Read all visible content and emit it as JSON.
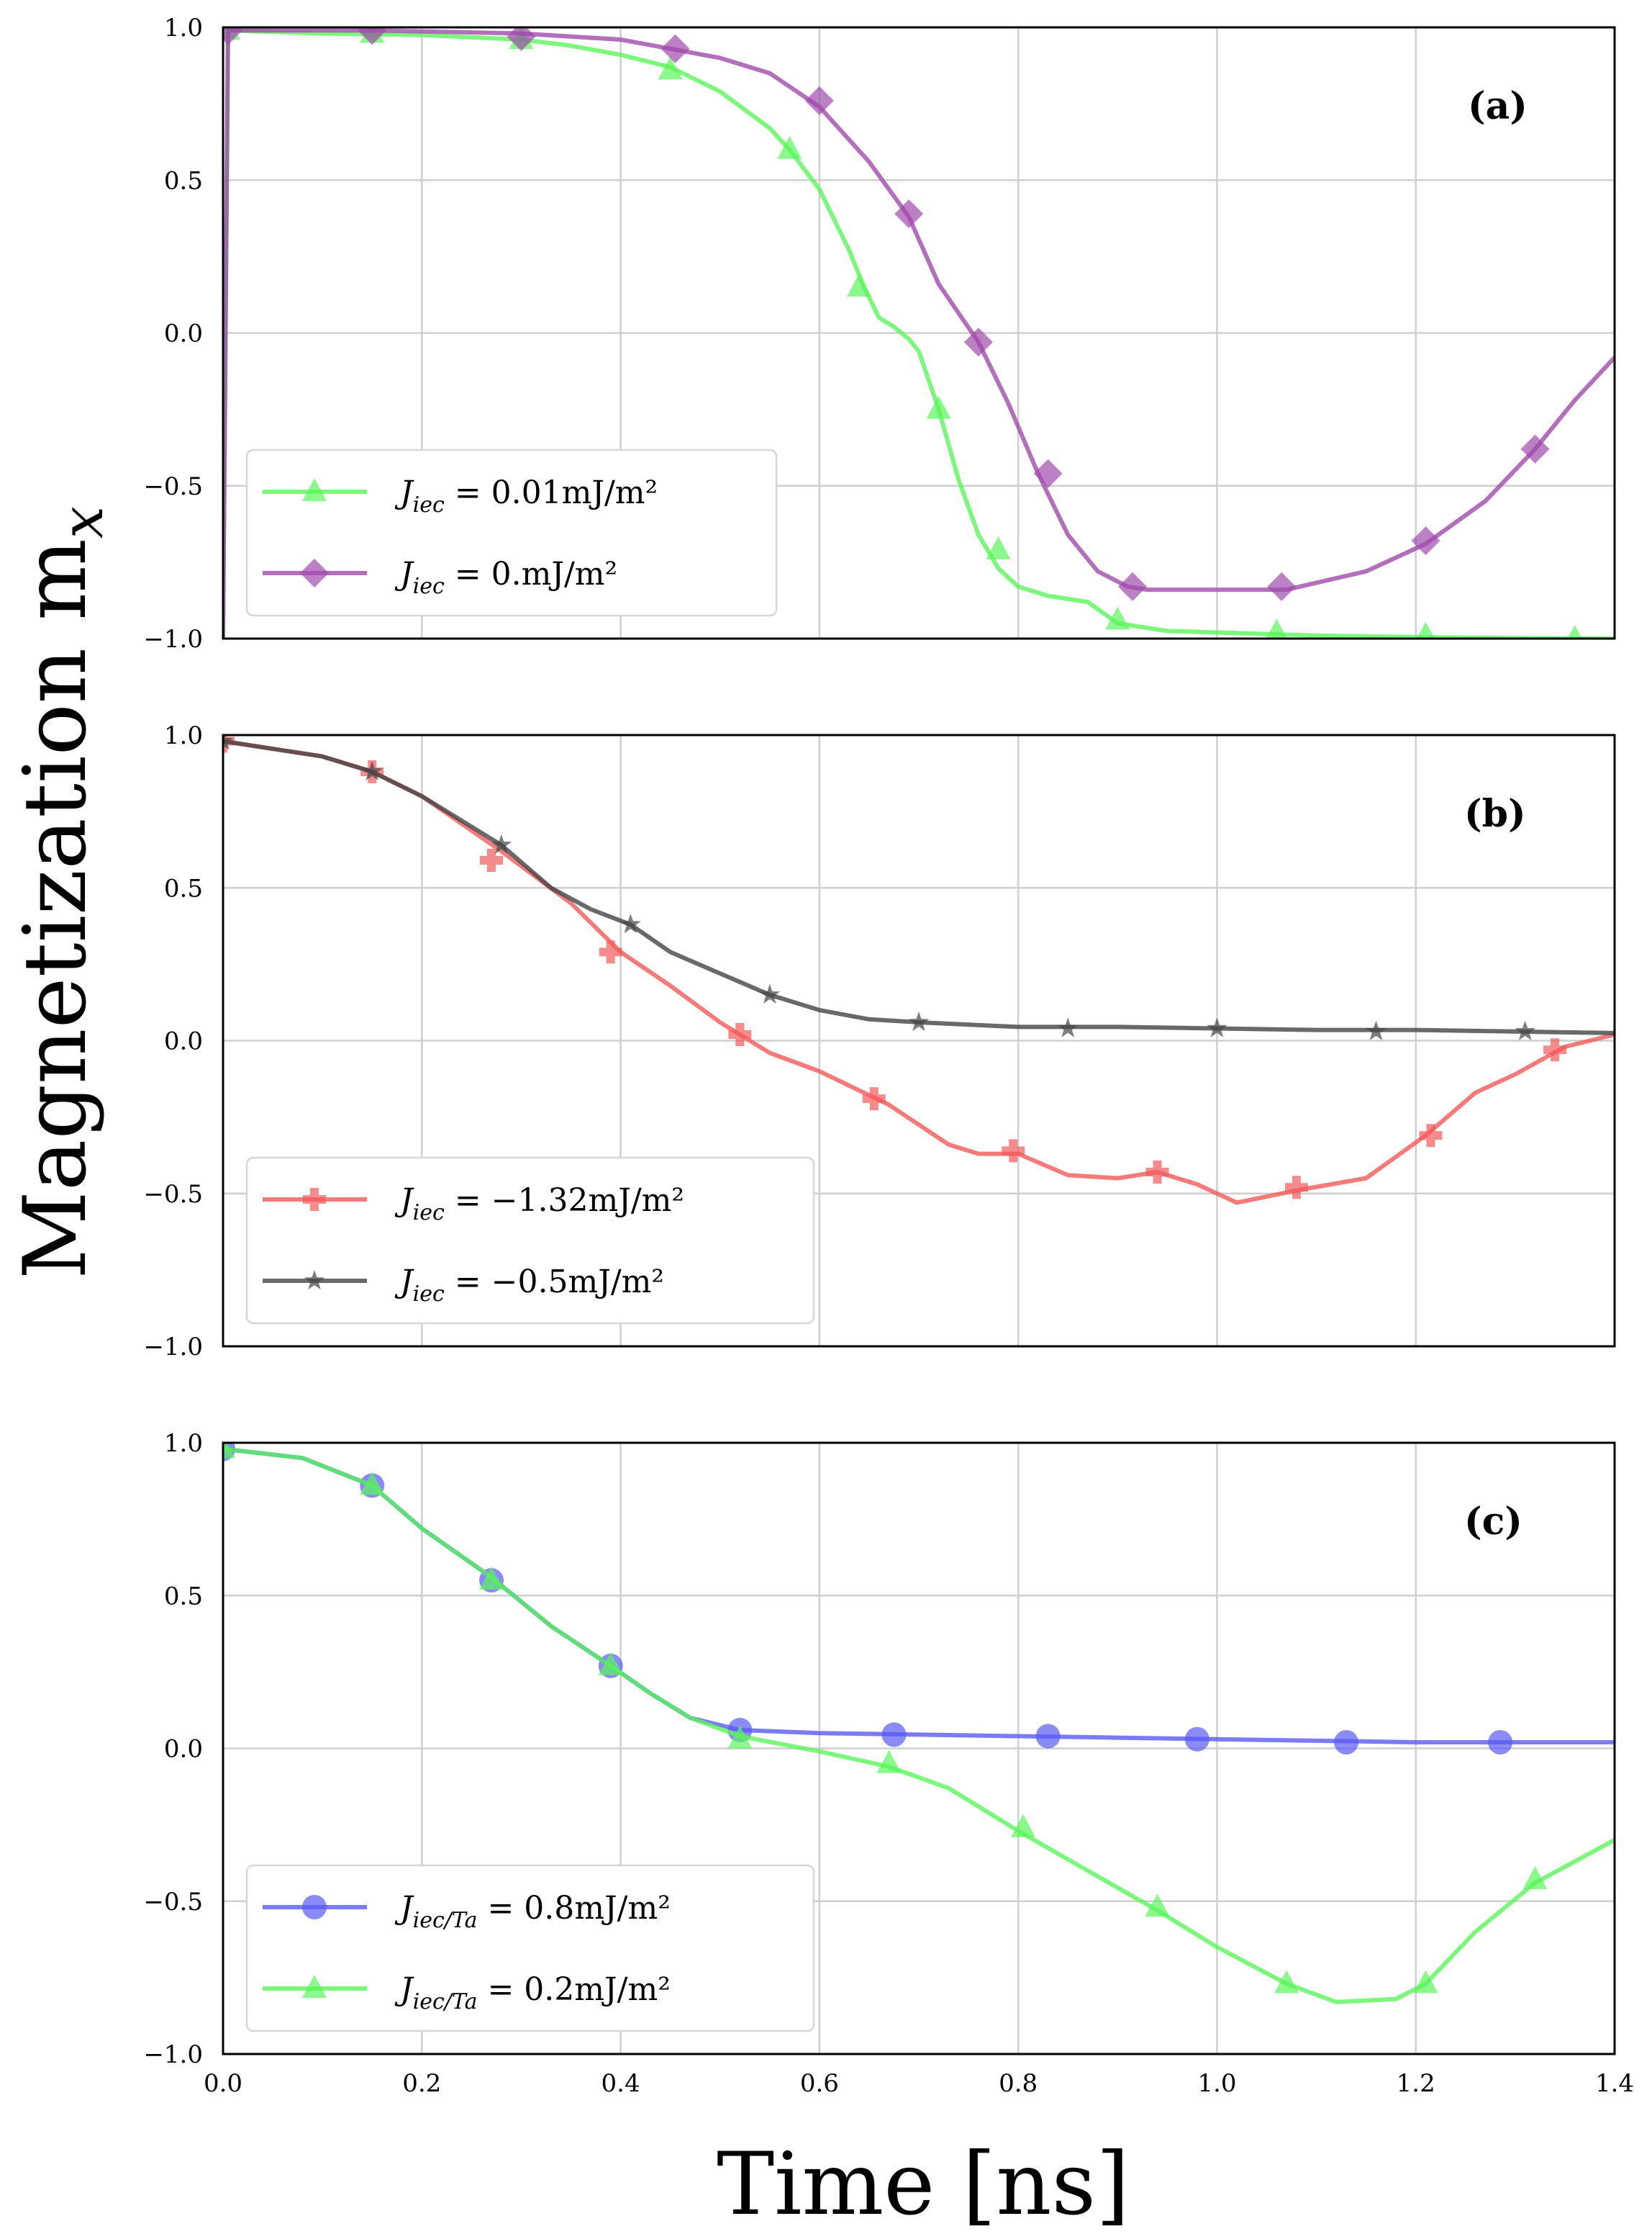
{
  "figure": {
    "ylabel": "Magnetization m",
    "ylabel_subscript": "x",
    "xlabel": "Time [ns]"
  },
  "chart_data": [
    {
      "type": "line",
      "panel": "(a)",
      "xlim": [
        0.0,
        1.4
      ],
      "ylim": [
        -1.0,
        1.0
      ],
      "xticks": [
        "0.0",
        "0.2",
        "0.4",
        "0.6",
        "0.8",
        "1.0",
        "1.2",
        "1.4"
      ],
      "yticks": [
        "−1.0",
        "−0.5",
        "0.0",
        "0.5",
        "1.0"
      ],
      "grid": true,
      "legend_position": "lower-left",
      "series": [
        {
          "name": "J_iec = 0.01mJ/m²",
          "label_main": "J",
          "label_sub": "iec",
          "label_rest": " = 0.01mJ/m²",
          "color": "#5af55a",
          "marker": "triangle",
          "x": [
            0.0,
            0.005,
            0.1,
            0.2,
            0.3,
            0.35,
            0.4,
            0.45,
            0.5,
            0.55,
            0.57,
            0.6,
            0.63,
            0.645,
            0.66,
            0.675,
            0.69,
            0.7,
            0.72,
            0.74,
            0.76,
            0.78,
            0.8,
            0.83,
            0.87,
            0.9,
            0.95,
            1.0,
            1.1,
            1.2,
            1.3,
            1.4
          ],
          "y": [
            -1.0,
            0.99,
            0.98,
            0.975,
            0.96,
            0.94,
            0.91,
            0.87,
            0.79,
            0.67,
            0.6,
            0.47,
            0.27,
            0.15,
            0.05,
            0.02,
            -0.02,
            -0.06,
            -0.25,
            -0.48,
            -0.66,
            -0.77,
            -0.83,
            -0.86,
            -0.88,
            -0.95,
            -0.975,
            -0.98,
            -0.99,
            -0.995,
            -0.998,
            -1.0
          ],
          "marker_x": [
            0.005,
            0.15,
            0.3,
            0.45,
            0.57,
            0.64,
            0.72,
            0.78,
            0.9,
            1.06,
            1.21,
            1.36
          ],
          "marker_y": [
            0.99,
            0.98,
            0.96,
            0.86,
            0.6,
            0.15,
            -0.25,
            -0.71,
            -0.94,
            -0.98,
            -0.99,
            -1.0
          ]
        },
        {
          "name": "J_iec = 0.mJ/m²",
          "label_main": "J",
          "label_sub": "iec",
          "label_rest": " = 0.mJ/m²",
          "color": "#a04aab",
          "marker": "diamond",
          "x": [
            0.0,
            0.005,
            0.15,
            0.3,
            0.4,
            0.45,
            0.5,
            0.55,
            0.6,
            0.65,
            0.69,
            0.72,
            0.76,
            0.79,
            0.82,
            0.85,
            0.88,
            0.91,
            0.93,
            1.0,
            1.07,
            1.15,
            1.21,
            1.27,
            1.32,
            1.36,
            1.4
          ],
          "y": [
            -1.0,
            0.99,
            0.99,
            0.98,
            0.96,
            0.93,
            0.9,
            0.85,
            0.74,
            0.56,
            0.38,
            0.16,
            -0.03,
            -0.23,
            -0.46,
            -0.66,
            -0.78,
            -0.83,
            -0.84,
            -0.84,
            -0.84,
            -0.78,
            -0.69,
            -0.55,
            -0.38,
            -0.22,
            -0.08
          ],
          "marker_x": [
            0.005,
            0.15,
            0.3,
            0.455,
            0.6,
            0.69,
            0.76,
            0.83,
            0.915,
            1.065,
            1.21,
            1.32
          ],
          "marker_y": [
            0.99,
            0.99,
            0.97,
            0.93,
            0.76,
            0.39,
            -0.03,
            -0.46,
            -0.83,
            -0.83,
            -0.68,
            -0.38
          ]
        }
      ]
    },
    {
      "type": "line",
      "panel": "(b)",
      "xlim": [
        0.0,
        1.4
      ],
      "ylim": [
        -1.0,
        1.0
      ],
      "xticks": [
        "0.0",
        "0.2",
        "0.4",
        "0.6",
        "0.8",
        "1.0",
        "1.2",
        "1.4"
      ],
      "yticks": [
        "−1.0",
        "−0.5",
        "0.0",
        "0.5",
        "1.0"
      ],
      "grid": true,
      "legend_position": "lower-left",
      "series": [
        {
          "name": "J_iec = −1.32mJ/m²",
          "label_main": "J",
          "label_sub": "iec",
          "label_rest": " = −1.32mJ/m²",
          "color": "#f25a5a",
          "marker": "plus",
          "x": [
            0.0,
            0.1,
            0.15,
            0.2,
            0.28,
            0.35,
            0.4,
            0.45,
            0.5,
            0.55,
            0.6,
            0.67,
            0.73,
            0.76,
            0.8,
            0.85,
            0.9,
            0.94,
            0.98,
            1.02,
            1.05,
            1.08,
            1.15,
            1.21,
            1.26,
            1.3,
            1.35,
            1.4
          ],
          "y": [
            0.98,
            0.93,
            0.88,
            0.8,
            0.62,
            0.45,
            0.29,
            0.18,
            0.06,
            -0.04,
            -0.1,
            -0.21,
            -0.34,
            -0.37,
            -0.37,
            -0.44,
            -0.45,
            -0.43,
            -0.47,
            -0.53,
            -0.51,
            -0.49,
            -0.45,
            -0.31,
            -0.17,
            -0.11,
            -0.02,
            0.02
          ],
          "marker_x": [
            0.0,
            0.15,
            0.27,
            0.39,
            0.52,
            0.655,
            0.795,
            0.94,
            1.08,
            1.215,
            1.34
          ],
          "marker_y": [
            0.98,
            0.88,
            0.59,
            0.29,
            0.02,
            -0.19,
            -0.36,
            -0.43,
            -0.48,
            -0.31,
            -0.03
          ]
        },
        {
          "name": "J_iec = −0.5mJ/m²",
          "label_main": "J",
          "label_sub": "iec",
          "label_rest": " = −0.5mJ/m²",
          "color": "#444444",
          "marker": "star",
          "x": [
            0.0,
            0.1,
            0.15,
            0.2,
            0.28,
            0.33,
            0.37,
            0.41,
            0.45,
            0.5,
            0.55,
            0.6,
            0.65,
            0.7,
            0.8,
            0.9,
            1.0,
            1.1,
            1.2,
            1.3,
            1.4
          ],
          "y": [
            0.98,
            0.93,
            0.88,
            0.8,
            0.64,
            0.5,
            0.43,
            0.38,
            0.29,
            0.22,
            0.15,
            0.1,
            0.07,
            0.06,
            0.045,
            0.045,
            0.04,
            0.035,
            0.035,
            0.03,
            0.025
          ],
          "marker_x": [
            0.0,
            0.15,
            0.28,
            0.41,
            0.55,
            0.7,
            0.85,
            1.0,
            1.16,
            1.31
          ],
          "marker_y": [
            0.98,
            0.88,
            0.64,
            0.38,
            0.15,
            0.06,
            0.04,
            0.04,
            0.03,
            0.03
          ]
        }
      ]
    },
    {
      "type": "line",
      "panel": "(c)",
      "xlim": [
        0.0,
        1.4
      ],
      "ylim": [
        -1.0,
        1.0
      ],
      "xticks": [
        "0.0",
        "0.2",
        "0.4",
        "0.6",
        "0.8",
        "1.0",
        "1.2",
        "1.4"
      ],
      "yticks": [
        "−1.0",
        "−0.5",
        "0.0",
        "0.5",
        "1.0"
      ],
      "grid": true,
      "legend_position": "lower-left",
      "series": [
        {
          "name": "J_iec/Ta = 0.8mJ/m²",
          "label_main": "J",
          "label_sub": "iec/Ta",
          "label_rest": " = 0.8mJ/m²",
          "color": "#5a5af5",
          "marker": "circle",
          "x": [
            0.0,
            0.08,
            0.15,
            0.2,
            0.27,
            0.33,
            0.39,
            0.43,
            0.47,
            0.52,
            0.6,
            0.7,
            0.8,
            0.9,
            1.0,
            1.1,
            1.2,
            1.3,
            1.4
          ],
          "y": [
            0.98,
            0.95,
            0.86,
            0.72,
            0.56,
            0.4,
            0.27,
            0.18,
            0.1,
            0.06,
            0.05,
            0.045,
            0.04,
            0.035,
            0.03,
            0.025,
            0.02,
            0.02,
            0.02
          ],
          "marker_x": [
            0.0,
            0.15,
            0.27,
            0.39,
            0.52,
            0.675,
            0.83,
            0.98,
            1.13,
            1.285
          ],
          "marker_y": [
            0.98,
            0.86,
            0.55,
            0.27,
            0.06,
            0.045,
            0.04,
            0.03,
            0.02,
            0.02
          ]
        },
        {
          "name": "J_iec/Ta = 0.2mJ/m²",
          "label_main": "J",
          "label_sub": "iec/Ta",
          "label_rest": " = 0.2mJ/m²",
          "color": "#5af55a",
          "marker": "triangle",
          "x": [
            0.0,
            0.08,
            0.15,
            0.2,
            0.27,
            0.33,
            0.39,
            0.43,
            0.47,
            0.52,
            0.6,
            0.67,
            0.73,
            0.8,
            0.87,
            0.94,
            1.0,
            1.07,
            1.12,
            1.18,
            1.21,
            1.26,
            1.32,
            1.4
          ],
          "y": [
            0.98,
            0.95,
            0.86,
            0.72,
            0.56,
            0.4,
            0.27,
            0.18,
            0.1,
            0.04,
            -0.01,
            -0.06,
            -0.13,
            -0.27,
            -0.4,
            -0.53,
            -0.65,
            -0.77,
            -0.83,
            -0.82,
            -0.77,
            -0.6,
            -0.44,
            -0.3
          ],
          "marker_x": [
            0.0,
            0.15,
            0.27,
            0.39,
            0.52,
            0.67,
            0.805,
            0.94,
            1.07,
            1.21,
            1.32
          ],
          "marker_y": [
            0.98,
            0.86,
            0.55,
            0.27,
            0.03,
            -0.05,
            -0.26,
            -0.52,
            -0.77,
            -0.77,
            -0.43
          ]
        }
      ]
    }
  ]
}
